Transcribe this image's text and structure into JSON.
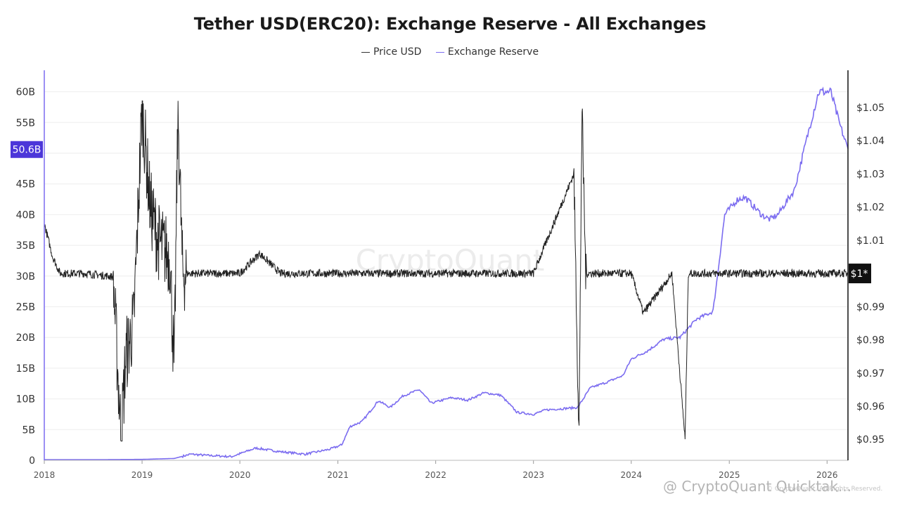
{
  "chart_data": {
    "type": "line",
    "title": "Tether USD(ERC20): Exchange Reserve - All Exchanges",
    "legend": [
      {
        "name": "Price USD",
        "color": "#333333"
      },
      {
        "name": "Exchange Reserve",
        "color": "#7b6cf0"
      }
    ],
    "legend_position": "top-center",
    "watermark": "CryptoQuant",
    "x_axis": {
      "type": "date",
      "ticks": [
        "2018",
        "2019",
        "2020",
        "2021",
        "2022",
        "2023",
        "2024",
        "2025",
        "2026"
      ],
      "range": [
        "2018-01-01",
        "2026-03-20"
      ]
    },
    "y_left": {
      "label": "",
      "range": [
        0,
        63.5
      ],
      "ticks": [
        "0",
        "5B",
        "10B",
        "15B",
        "20B",
        "25B",
        "30B",
        "35B",
        "40B",
        "45B",
        "50B",
        "55B",
        "60B"
      ],
      "current_value_label": "50.6B",
      "current_value": 50.6
    },
    "y_right": {
      "label": "",
      "range": [
        0.9437,
        1.0612
      ],
      "ticks": [
        "$0.95",
        "$0.96",
        "$0.97",
        "$0.98",
        "$0.99",
        "$1.01",
        "$1.02",
        "$1.03",
        "$1.04",
        "$1.05"
      ],
      "current_value_label": "$1*",
      "current_value": 1.0
    },
    "grid": "horizontal",
    "series": [
      {
        "name": "Exchange Reserve",
        "axis": "left",
        "unit": "B USD",
        "points": [
          [
            "2018-01-01",
            0.1
          ],
          [
            "2018-06-01",
            0.1
          ],
          [
            "2019-01-01",
            0.15
          ],
          [
            "2019-05-01",
            0.3
          ],
          [
            "2019-07-01",
            1.0
          ],
          [
            "2019-09-01",
            0.8
          ],
          [
            "2019-12-01",
            0.6
          ],
          [
            "2020-03-01",
            2.0
          ],
          [
            "2020-06-01",
            1.4
          ],
          [
            "2020-09-01",
            1.0
          ],
          [
            "2020-12-01",
            1.8
          ],
          [
            "2021-01-15",
            2.5
          ],
          [
            "2021-02-15",
            5.5
          ],
          [
            "2021-04-01",
            6.3
          ],
          [
            "2021-06-01",
            9.7
          ],
          [
            "2021-07-15",
            8.6
          ],
          [
            "2021-09-01",
            10.5
          ],
          [
            "2021-11-01",
            11.5
          ],
          [
            "2021-12-15",
            9.3
          ],
          [
            "2022-03-01",
            10.2
          ],
          [
            "2022-05-01",
            9.8
          ],
          [
            "2022-07-01",
            11.0
          ],
          [
            "2022-09-01",
            10.6
          ],
          [
            "2022-11-01",
            7.8
          ],
          [
            "2023-01-01",
            7.5
          ],
          [
            "2023-02-15",
            8.2
          ],
          [
            "2023-06-15",
            8.6
          ],
          [
            "2023-08-01",
            11.8
          ],
          [
            "2023-10-01",
            12.7
          ],
          [
            "2023-12-01",
            13.8
          ],
          [
            "2024-01-01",
            16.5
          ],
          [
            "2024-03-01",
            17.8
          ],
          [
            "2024-05-01",
            19.7
          ],
          [
            "2024-07-01",
            20.0
          ],
          [
            "2024-09-01",
            23.0
          ],
          [
            "2024-11-01",
            24.2
          ],
          [
            "2024-11-15",
            29.0
          ],
          [
            "2024-12-15",
            40.0
          ],
          [
            "2025-02-01",
            42.5
          ],
          [
            "2025-03-01",
            42.8
          ],
          [
            "2025-05-01",
            40.0
          ],
          [
            "2025-06-01",
            39.2
          ],
          [
            "2025-07-01",
            40.0
          ],
          [
            "2025-09-01",
            44.0
          ],
          [
            "2025-11-01",
            55.0
          ],
          [
            "2025-12-01",
            60.0
          ],
          [
            "2026-01-15",
            60.0
          ],
          [
            "2026-02-15",
            55.0
          ],
          [
            "2026-03-20",
            50.6
          ]
        ]
      },
      {
        "name": "Price USD",
        "axis": "right",
        "unit": "USD",
        "baseline": 1.0,
        "points": [
          [
            "2018-01-01",
            1.015
          ],
          [
            "2018-02-01",
            1.005
          ],
          [
            "2018-03-01",
            1.0
          ],
          [
            "2018-06-01",
            1.0
          ],
          [
            "2018-09-15",
            0.999
          ],
          [
            "2018-10-15",
            0.95
          ],
          [
            "2018-11-01",
            0.975
          ],
          [
            "2018-12-01",
            0.985
          ],
          [
            "2019-01-01",
            1.05
          ],
          [
            "2019-02-01",
            1.02
          ],
          [
            "2019-03-01",
            1.01
          ],
          [
            "2019-04-15",
            1.005
          ],
          [
            "2019-05-01",
            0.97
          ],
          [
            "2019-05-15",
            1.05
          ],
          [
            "2019-06-01",
            1.0
          ],
          [
            "2020-01-01",
            1.0
          ],
          [
            "2020-03-15",
            1.006
          ],
          [
            "2020-06-01",
            1.0
          ],
          [
            "2021-06-01",
            1.0
          ],
          [
            "2022-06-01",
            1.0
          ],
          [
            "2023-01-01",
            1.0
          ],
          [
            "2023-06-01",
            1.03
          ],
          [
            "2023-06-20",
            0.95
          ],
          [
            "2023-07-01",
            1.05
          ],
          [
            "2023-07-15",
            1.0
          ],
          [
            "2024-01-01",
            1.0
          ],
          [
            "2024-02-15",
            0.988
          ],
          [
            "2024-06-01",
            1.0
          ],
          [
            "2024-07-20",
            0.95
          ],
          [
            "2024-08-01",
            1.0
          ],
          [
            "2025-06-01",
            1.0
          ],
          [
            "2026-03-20",
            1.0
          ]
        ]
      }
    ]
  },
  "footer": {
    "watermark_text": "@ CryptoQuant Quicktak...",
    "note": "© CryptoQuant. All Rights Reserved."
  }
}
